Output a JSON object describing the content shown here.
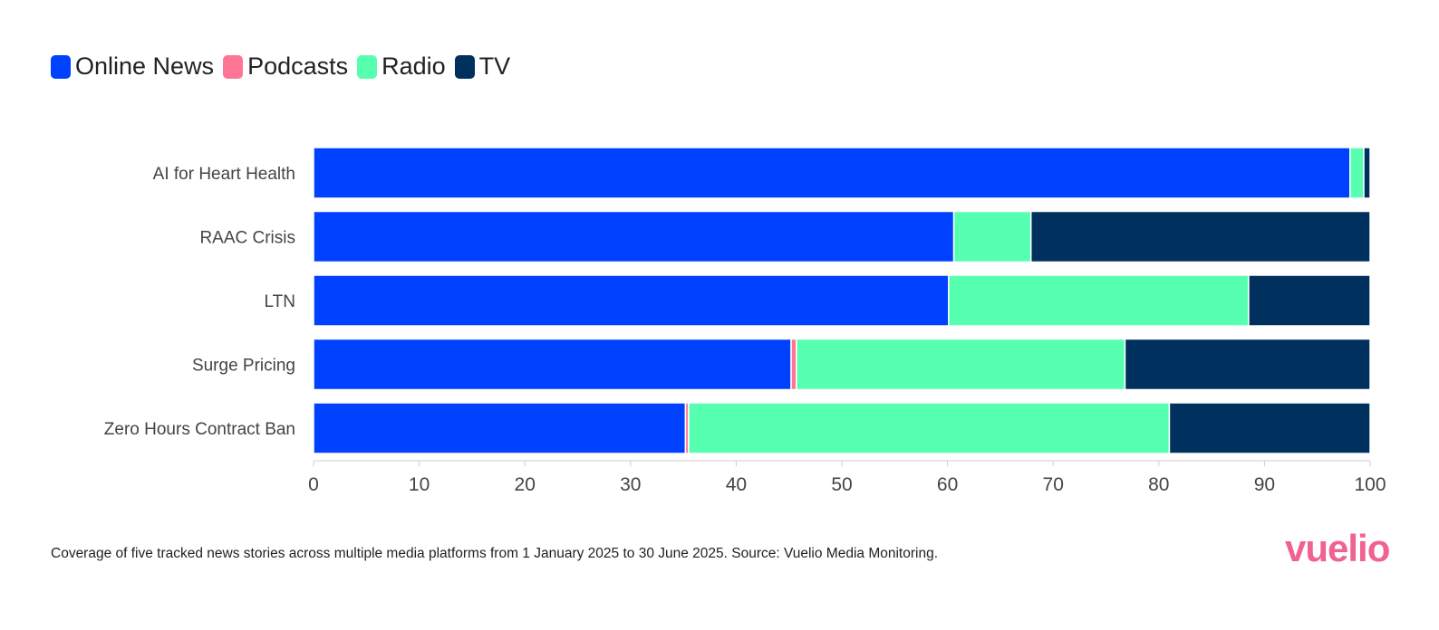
{
  "chart_data": {
    "type": "bar",
    "orientation": "horizontal",
    "stacked": true,
    "categories": [
      "AI for Heart Health",
      "RAAC Crisis",
      "LTN",
      "Surge Pricing",
      "Zero Hours Contract Ban"
    ],
    "series": [
      {
        "name": "Online News",
        "color": "#0040ff",
        "values": [
          98.1,
          60.6,
          60.1,
          45.2,
          35.2
        ]
      },
      {
        "name": "Podcasts",
        "color": "#ff7595",
        "values": [
          0,
          0,
          0,
          0.5,
          0.3
        ]
      },
      {
        "name": "Radio",
        "color": "#57ffb0",
        "values": [
          1.3,
          7.3,
          28.4,
          31.1,
          45.5
        ]
      },
      {
        "name": "TV",
        "color": "#00305e",
        "values": [
          0.6,
          32.1,
          11.5,
          23.2,
          19.0
        ]
      }
    ],
    "xlim": [
      0,
      100
    ],
    "xticks": [
      "0",
      "10",
      "20",
      "30",
      "40",
      "50",
      "60",
      "70",
      "80",
      "90",
      "100"
    ],
    "legend_position": "top-left",
    "grid": false
  },
  "footnote": "Coverage of five tracked news stories across multiple media platforms from 1 January 2025 to 30 June 2025. Source: Vuelio Media Monitoring.",
  "logo": "vuelio"
}
